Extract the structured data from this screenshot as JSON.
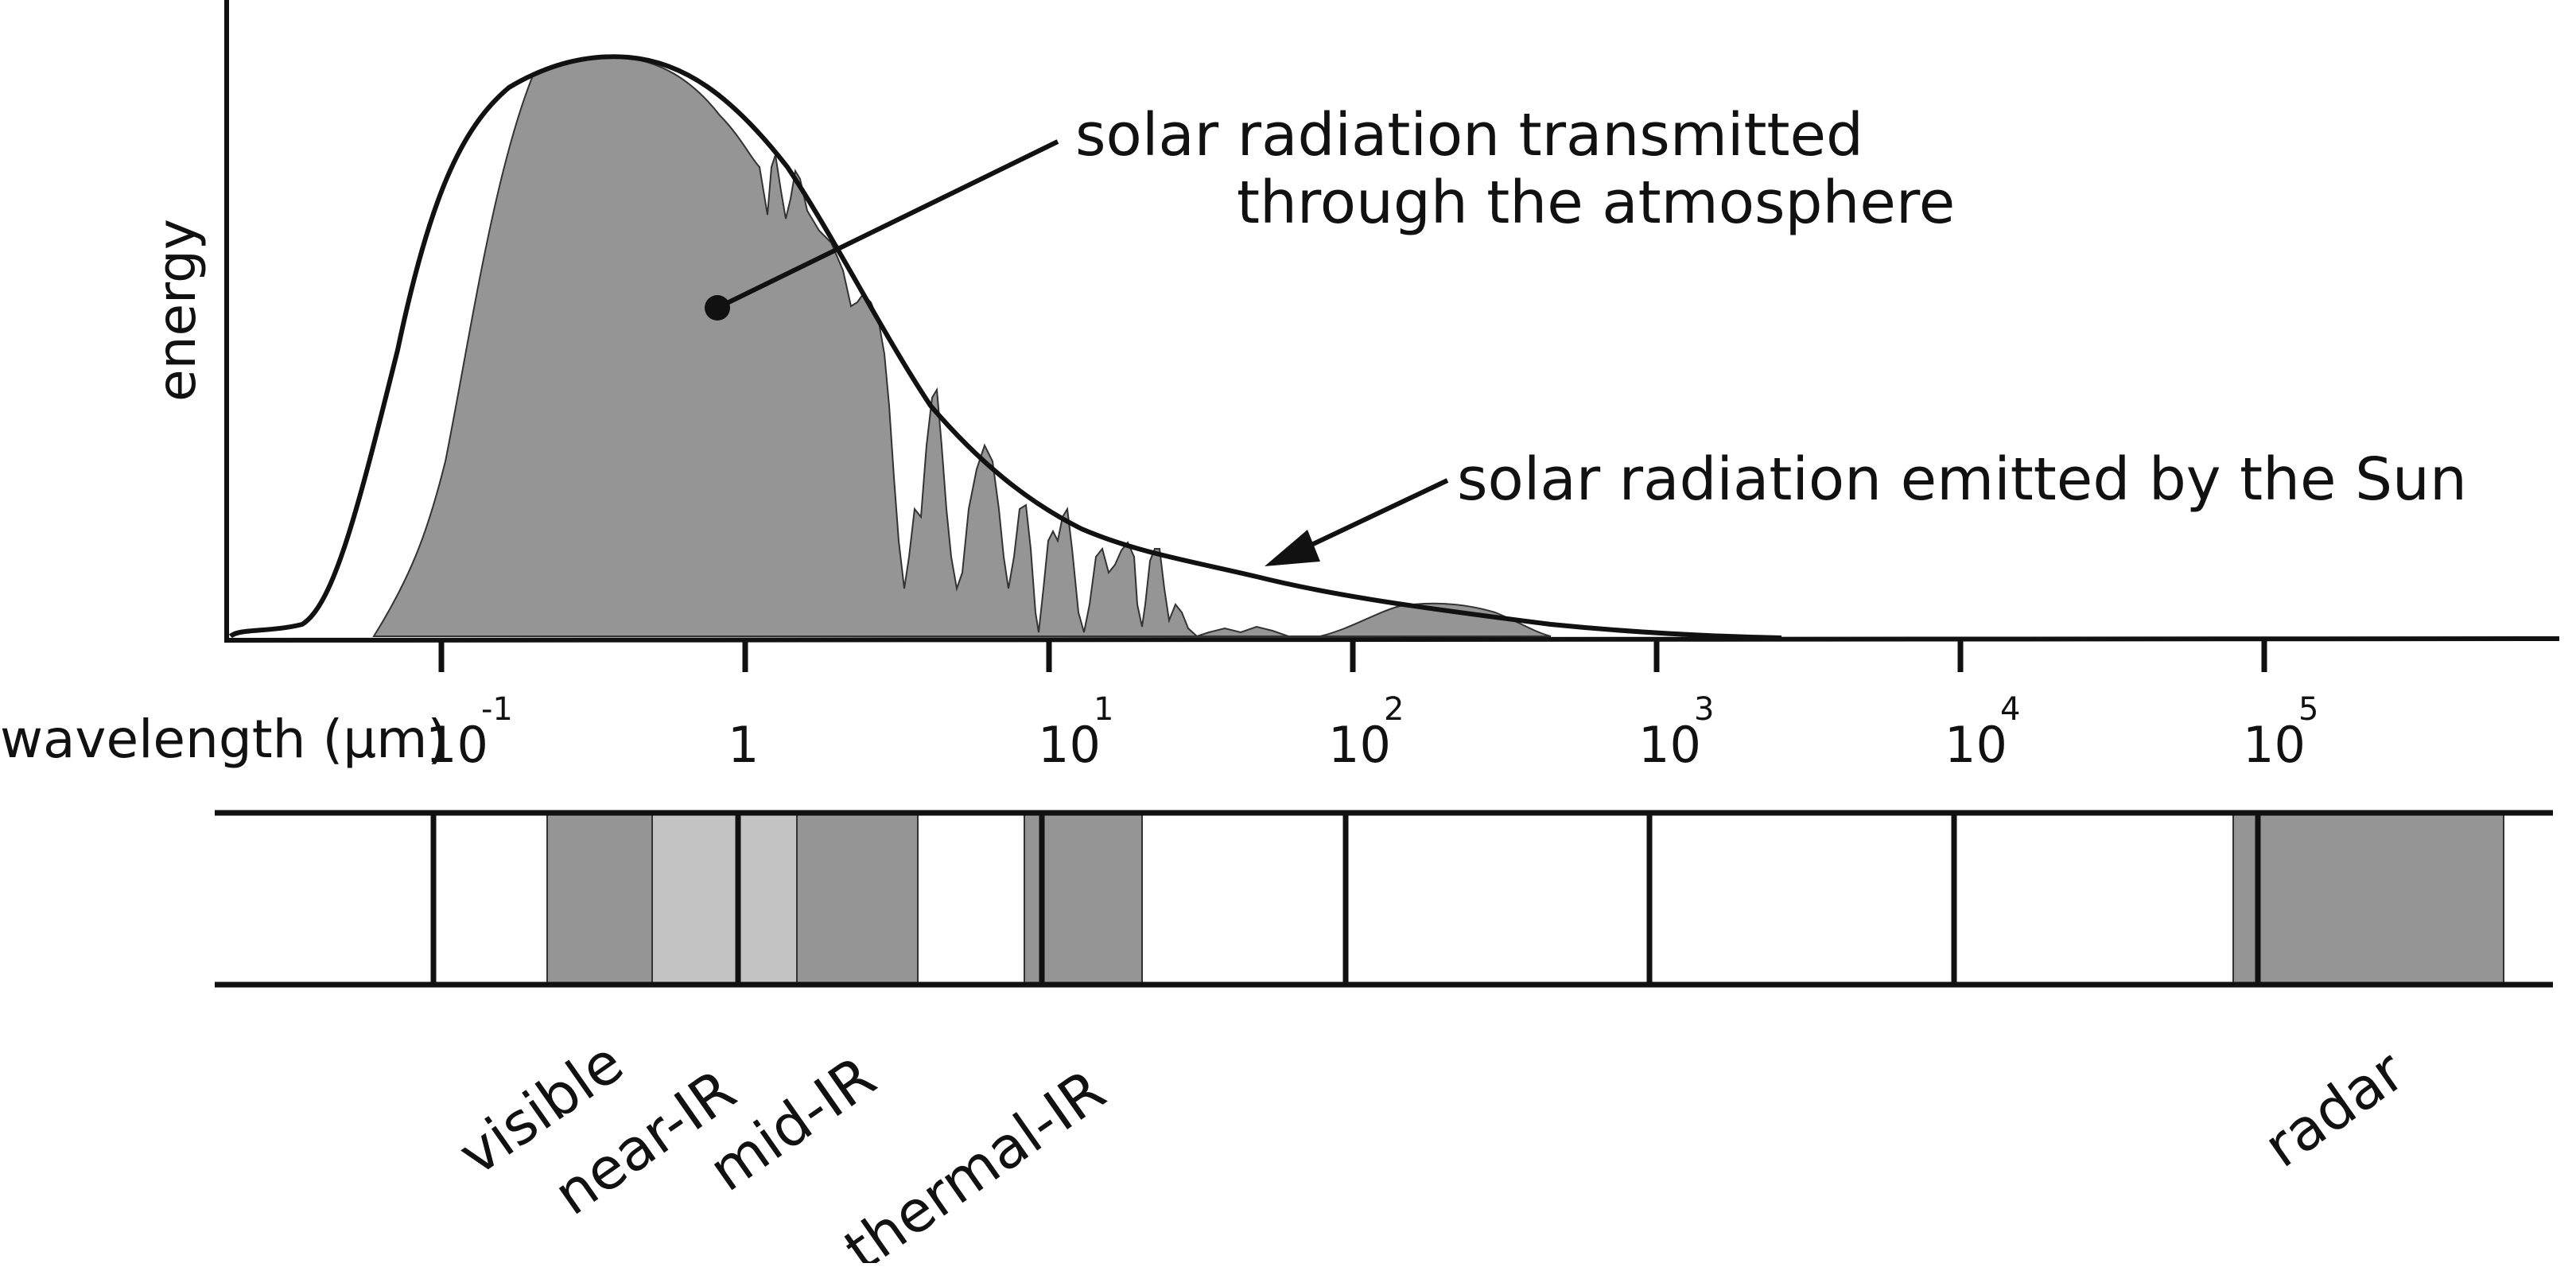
{
  "axes": {
    "y_label": "energy",
    "x_label": "wavelength (μm)"
  },
  "annotations": {
    "transmitted_line1": "solar radiation transmitted",
    "transmitted_line2": "through the atmosphere",
    "emitted": "solar radiation emitted by the Sun"
  },
  "ticks": [
    {
      "base": "10",
      "exp": "-1"
    },
    {
      "base": "1",
      "exp": ""
    },
    {
      "base": "10",
      "exp": "1"
    },
    {
      "base": "10",
      "exp": "2"
    },
    {
      "base": "10",
      "exp": "3"
    },
    {
      "base": "10",
      "exp": "4"
    },
    {
      "base": "10",
      "exp": "5"
    }
  ],
  "bands": [
    {
      "label": "visible"
    },
    {
      "label": "near-IR"
    },
    {
      "label": "mid-IR"
    },
    {
      "label": "thermal-IR"
    },
    {
      "label": "radar"
    }
  ],
  "colors": {
    "ink": "#111111",
    "transmitted_fill": "#959595",
    "band_dark": "#959595",
    "band_light": "#c4c4c4"
  }
}
